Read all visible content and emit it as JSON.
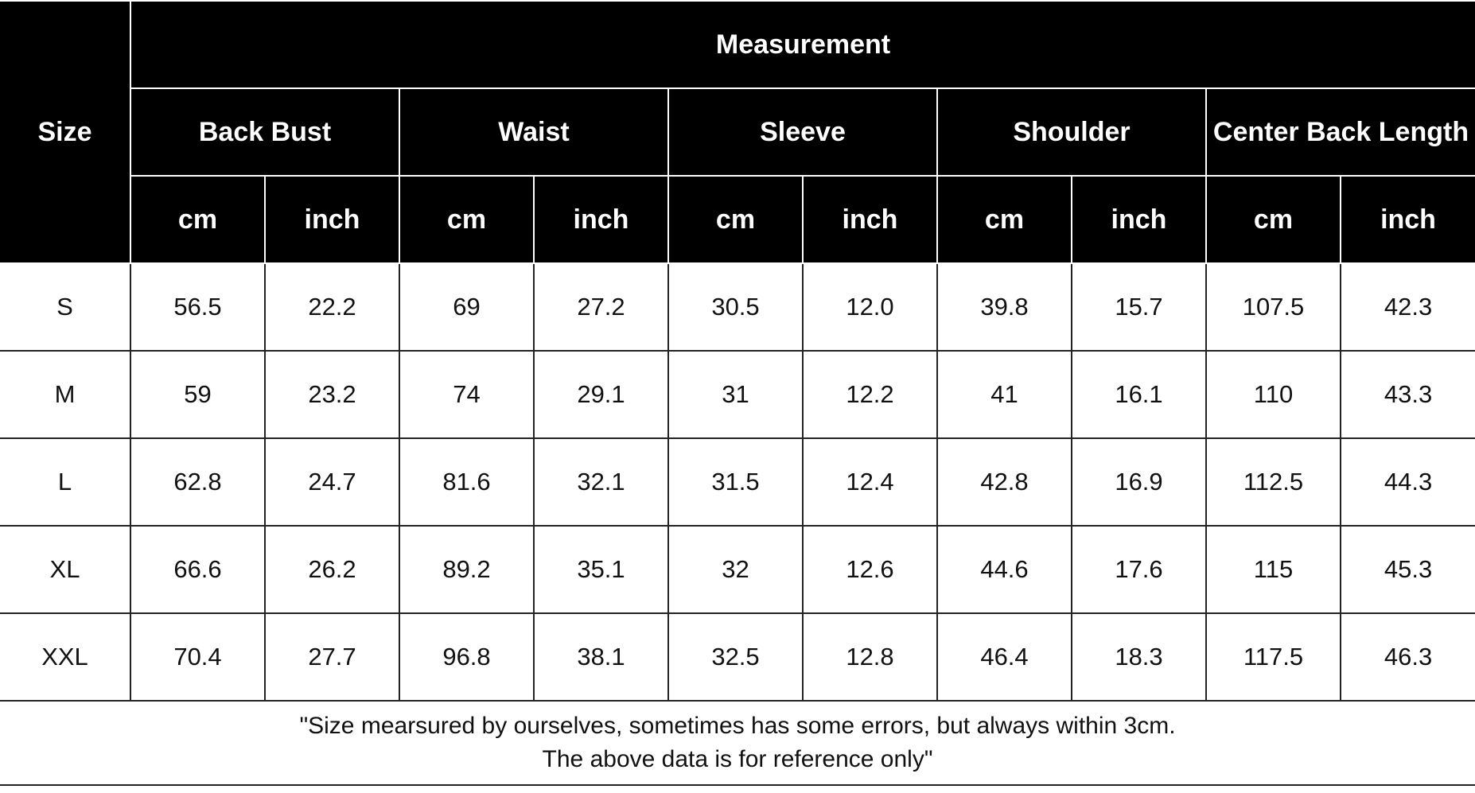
{
  "header": {
    "size_label": "Size",
    "measurement_label": "Measurement",
    "groups": [
      {
        "label": "Back Bust"
      },
      {
        "label": "Waist"
      },
      {
        "label": "Sleeve"
      },
      {
        "label": "Shoulder"
      },
      {
        "label": "Center Back Length"
      }
    ],
    "unit_cm": "cm",
    "unit_inch": "inch"
  },
  "rows": [
    {
      "size": "S",
      "values": [
        "56.5",
        "22.2",
        "69",
        "27.2",
        "30.5",
        "12.0",
        "39.8",
        "15.7",
        "107.5",
        "42.3"
      ]
    },
    {
      "size": "M",
      "values": [
        "59",
        "23.2",
        "74",
        "29.1",
        "31",
        "12.2",
        "41",
        "16.1",
        "110",
        "43.3"
      ]
    },
    {
      "size": "L",
      "values": [
        "62.8",
        "24.7",
        "81.6",
        "32.1",
        "31.5",
        "12.4",
        "42.8",
        "16.9",
        "112.5",
        "44.3"
      ]
    },
    {
      "size": "XL",
      "values": [
        "66.6",
        "26.2",
        "89.2",
        "35.1",
        "32",
        "12.6",
        "44.6",
        "17.6",
        "115",
        "45.3"
      ]
    },
    {
      "size": "XXL",
      "values": [
        "70.4",
        "27.7",
        "96.8",
        "38.1",
        "32.5",
        "12.8",
        "46.4",
        "18.3",
        "117.5",
        "46.3"
      ]
    }
  ],
  "note": {
    "line1": "\"Size mearsured by ourselves, sometimes has some errors, but always within 3cm.",
    "line2": "The above data is for reference only\""
  }
}
